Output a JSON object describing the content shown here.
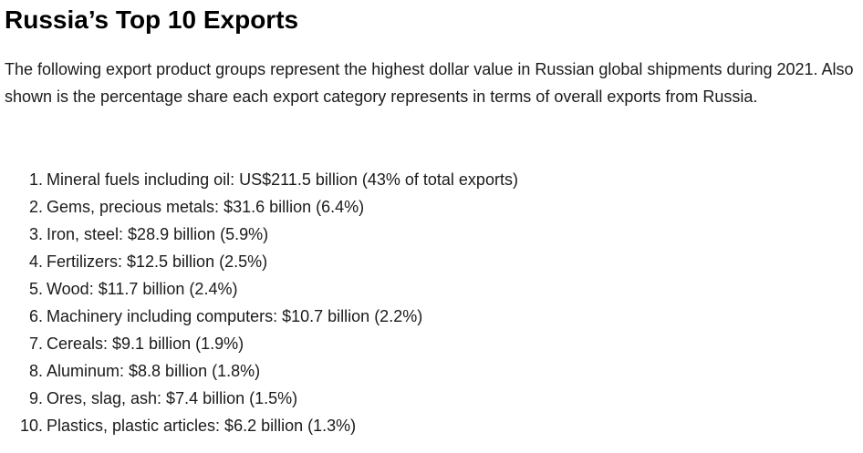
{
  "article": {
    "title": "Russia’s Top 10 Exports",
    "intro": "The following export product groups represent the highest dollar value in Russian global shipments during 2021. Also shown is the percentage share each export category represents in terms of overall exports from Russia.",
    "items": [
      {
        "num": "1.",
        "text": "Mineral fuels including oil: US$211.5 billion (43% of total exports)"
      },
      {
        "num": "2.",
        "text": "Gems, precious metals: $31.6 billion (6.4%)"
      },
      {
        "num": "3.",
        "text": "Iron, steel: $28.9 billion (5.9%)"
      },
      {
        "num": "4.",
        "text": "Fertilizers: $12.5 billion (2.5%)"
      },
      {
        "num": "5.",
        "text": "Wood: $11.7 billion (2.4%)"
      },
      {
        "num": "6.",
        "text": "Machinery including computers: $10.7 billion (2.2%)"
      },
      {
        "num": "7.",
        "text": "Cereals: $9.1 billion (1.9%)"
      },
      {
        "num": "8.",
        "text": "Aluminum: $8.8 billion (1.8%)"
      },
      {
        "num": "9.",
        "text": "Ores, slag, ash: $7.4 billion (1.5%)"
      },
      {
        "num": "10.",
        "text": "Plastics, plastic articles: $6.2 billion (1.3%)"
      }
    ]
  }
}
